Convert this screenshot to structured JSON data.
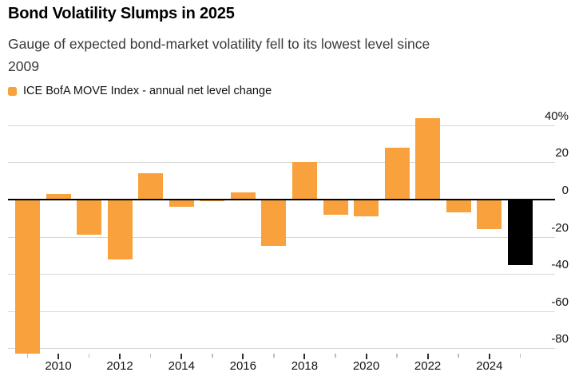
{
  "header": {
    "title": "Bond Volatility Slumps in 2025",
    "subtitle_line1": "Gauge of expected bond-market volatility fell to its lowest level since",
    "subtitle_line2": "2009"
  },
  "legend": {
    "label": "ICE BofA MOVE Index - annual net level change",
    "swatch_color": "#F9A13C"
  },
  "chart_data": {
    "type": "bar",
    "title": "Bond Volatility Slumps in 2025",
    "subtitle": "Gauge of expected bond-market volatility fell to its lowest level since 2009",
    "series": [
      {
        "name": "ICE BofA MOVE Index - annual net level change",
        "color": "#F9A13C"
      }
    ],
    "highlight": {
      "year": 2025,
      "color": "#000000"
    },
    "bars": [
      {
        "year": 2009,
        "value": -83
      },
      {
        "year": 2010,
        "value": 3
      },
      {
        "year": 2011,
        "value": -19
      },
      {
        "year": 2012,
        "value": -32
      },
      {
        "year": 2013,
        "value": 14
      },
      {
        "year": 2014,
        "value": -4
      },
      {
        "year": 2015,
        "value": -1
      },
      {
        "year": 2016,
        "value": 4
      },
      {
        "year": 2017,
        "value": -25
      },
      {
        "year": 2018,
        "value": 20
      },
      {
        "year": 2019,
        "value": -8
      },
      {
        "year": 2020,
        "value": -9
      },
      {
        "year": 2021,
        "value": 28
      },
      {
        "year": 2022,
        "value": 44
      },
      {
        "year": 2023,
        "value": -7
      },
      {
        "year": 2024,
        "value": -16
      },
      {
        "year": 2025,
        "value": -35
      }
    ],
    "unit": "%",
    "xlabel": "",
    "ylabel": "",
    "ylim": [
      -85,
      46
    ],
    "y_ticks": [
      {
        "value": 40,
        "label": "40%"
      },
      {
        "value": 20,
        "label": "20"
      },
      {
        "value": 0,
        "label": "0"
      },
      {
        "value": -20,
        "label": "-20"
      },
      {
        "value": -40,
        "label": "-40"
      },
      {
        "value": -60,
        "label": "-60"
      },
      {
        "value": -80,
        "label": "-80"
      }
    ],
    "x_tick_labels": [
      2010,
      2012,
      2014,
      2016,
      2018,
      2020,
      2022,
      2024
    ],
    "grid": "horizontal",
    "zero_line": true,
    "legend_position": "top-left"
  },
  "colors": {
    "bar_orange": "#F9A13C",
    "bar_black": "#000000",
    "gridline": "#D8D8D8",
    "zero_line": "#000000",
    "subtitle_text": "#3A3A3A",
    "axis_text": "#111111"
  }
}
